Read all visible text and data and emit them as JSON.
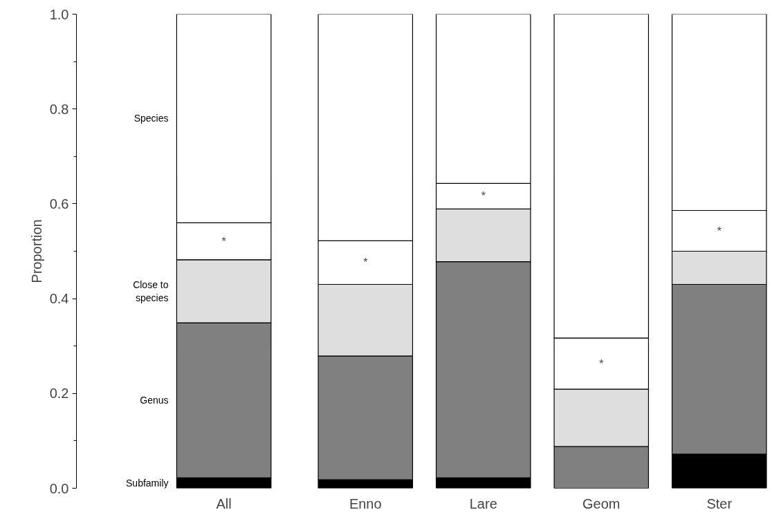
{
  "chart_data": {
    "type": "bar",
    "stacked": true,
    "ylabel": "Proportion",
    "categories": [
      "All",
      "Enno",
      "Lare",
      "Geom",
      "Ster"
    ],
    "series": [
      {
        "name": "Subfamily",
        "color": "#000000",
        "values": [
          0.022,
          0.018,
          0.022,
          0,
          0.072
        ]
      },
      {
        "name": "Genus",
        "color": "#808080",
        "values": [
          0.327,
          0.261,
          0.456,
          0.088,
          0.358
        ]
      },
      {
        "name": "Close to species",
        "color": "#dedede",
        "values": [
          0.133,
          0.151,
          0.111,
          0.121,
          0.07
        ]
      },
      {
        "color": "#ffffff",
        "values": [
          0.078,
          0.092,
          0.054,
          0.108,
          0.086
        ]
      },
      {
        "name": "Species",
        "color": "#ffffff",
        "values": [
          0.44,
          0.478,
          0.357,
          0.683,
          0.414
        ]
      }
    ],
    "annotations": [
      "*",
      "*",
      "*",
      "*",
      "*"
    ],
    "ylim": [
      0,
      1.0
    ],
    "yticks": [
      {
        "value": 0,
        "label": "0.0"
      },
      {
        "value": 0.2,
        "label": "0.2"
      },
      {
        "value": 0.4,
        "label": "0.4"
      },
      {
        "value": 0.6,
        "label": "0.6"
      },
      {
        "value": 0.8,
        "label": "0.8"
      },
      {
        "value": 1.0,
        "label": "1.0"
      }
    ],
    "grid": false
  }
}
